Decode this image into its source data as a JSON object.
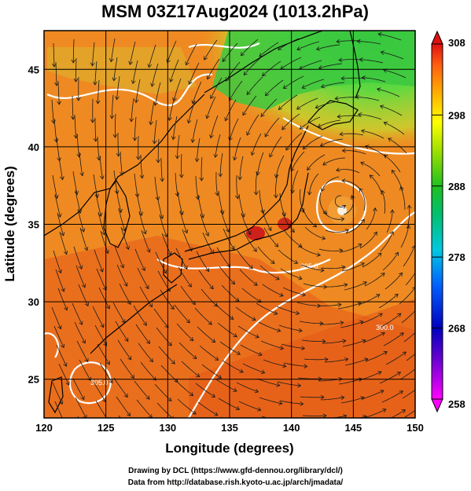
{
  "title": "MSM 03Z17Aug2024 (1013.2hPa)",
  "xaxis": {
    "label": "Longitude (degrees)",
    "ticks": [
      "120",
      "125",
      "130",
      "135",
      "140",
      "145",
      "150"
    ]
  },
  "yaxis": {
    "label": "Latitude  (degrees)",
    "ticks": [
      "25",
      "30",
      "35",
      "40",
      "45"
    ]
  },
  "colorbar": {
    "ticks": [
      "308",
      "298",
      "288",
      "278",
      "268",
      "258"
    ],
    "stops": [
      "#ff00ff",
      "#0000c0",
      "#00a0ff",
      "#00d8a0",
      "#20c020",
      "#9fe000",
      "#ffff00",
      "#ffa000",
      "#ff5010",
      "#e01010"
    ]
  },
  "contour_labels": [
    "305.0",
    "300.0",
    "305.0"
  ],
  "colors": {
    "warm": "#f0821e",
    "hot": "#e8501a",
    "green": "#50d040",
    "land_outline": "#000000",
    "contour": "#ffffff"
  },
  "credits": {
    "line1": "Drawing by DCL (https://www.gfd-dennou.org/library/dcl/)",
    "line2": "Data from http://database.rish.kyoto-u.ac.jp/arch/jmadata/"
  },
  "chart_data": {
    "type": "map",
    "variable": "temperature (K) with wind streamlines",
    "level": "1013.2hPa",
    "time": "03Z17Aug2024",
    "lon_range": [
      120,
      150
    ],
    "lat_range": [
      22.5,
      47.5
    ],
    "colorbar_range": [
      258,
      308
    ],
    "typhoon_center": {
      "lon": 144,
      "lat": 36.5
    }
  }
}
